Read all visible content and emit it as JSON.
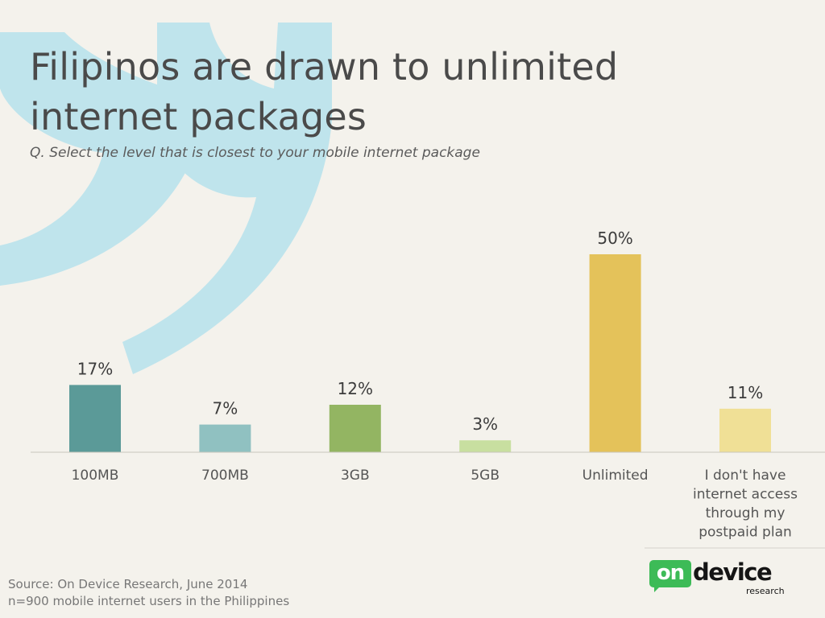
{
  "page": {
    "title": "Filipinos are drawn to unlimited internet packages",
    "subtitle": "Q. Select the level that is closest to your mobile internet package",
    "source_line1": "Source: On Device Research, June 2014",
    "source_line2": "n=900 mobile internet users in the Philippines"
  },
  "logo": {
    "badge_text": "on",
    "word_text": "device",
    "sub_text": "research",
    "badge_color": "#3dbb57"
  },
  "decoration": {
    "quote_mark_color": "#bfe4ec"
  },
  "chart_data": {
    "type": "bar",
    "title": "",
    "xlabel": "",
    "ylabel": "",
    "ylim": [
      0,
      50
    ],
    "grid": false,
    "legend": "none",
    "categories": [
      "100MB",
      "700MB",
      "3GB",
      "5GB",
      "Unlimited",
      "I don't have internet access through my postpaid plan"
    ],
    "category_lines": [
      [
        "100MB"
      ],
      [
        "700MB"
      ],
      [
        "3GB"
      ],
      [
        "5GB"
      ],
      [
        "Unlimited"
      ],
      [
        "I don't have",
        "internet access",
        "through my",
        "postpaid plan"
      ]
    ],
    "values": [
      17,
      7,
      12,
      3,
      50,
      11
    ],
    "value_labels": [
      "17%",
      "7%",
      "12%",
      "3%",
      "50%",
      "11%"
    ],
    "colors": [
      "#5b9a98",
      "#90c1c1",
      "#93b562",
      "#c8dfa0",
      "#e4c25a",
      "#f0e096"
    ]
  }
}
